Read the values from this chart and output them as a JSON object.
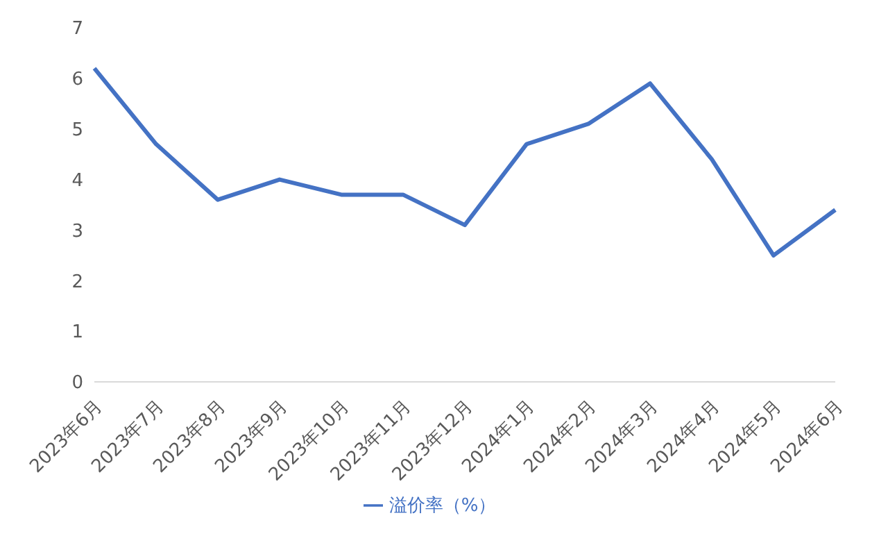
{
  "chart_data": {
    "type": "line",
    "categories": [
      "2023年6月",
      "2023年7月",
      "2023年8月",
      "2023年9月",
      "2023年10月",
      "2023年11月",
      "2023年12月",
      "2024年1月",
      "2024年2月",
      "2024年3月",
      "2024年4月",
      "2024年5月",
      "2024年6月"
    ],
    "series": [
      {
        "name": "溢价率（%）",
        "color": "#4472c4",
        "values": [
          6.2,
          4.7,
          3.6,
          4.0,
          3.7,
          3.7,
          3.1,
          4.7,
          5.1,
          5.9,
          4.4,
          2.5,
          3.4
        ]
      }
    ],
    "ylim": [
      0,
      7
    ],
    "yticks": [
      0,
      1,
      2,
      3,
      4,
      5,
      6,
      7
    ],
    "grid": false,
    "legend": "bottom",
    "marker": "none",
    "line_style": "solid"
  }
}
